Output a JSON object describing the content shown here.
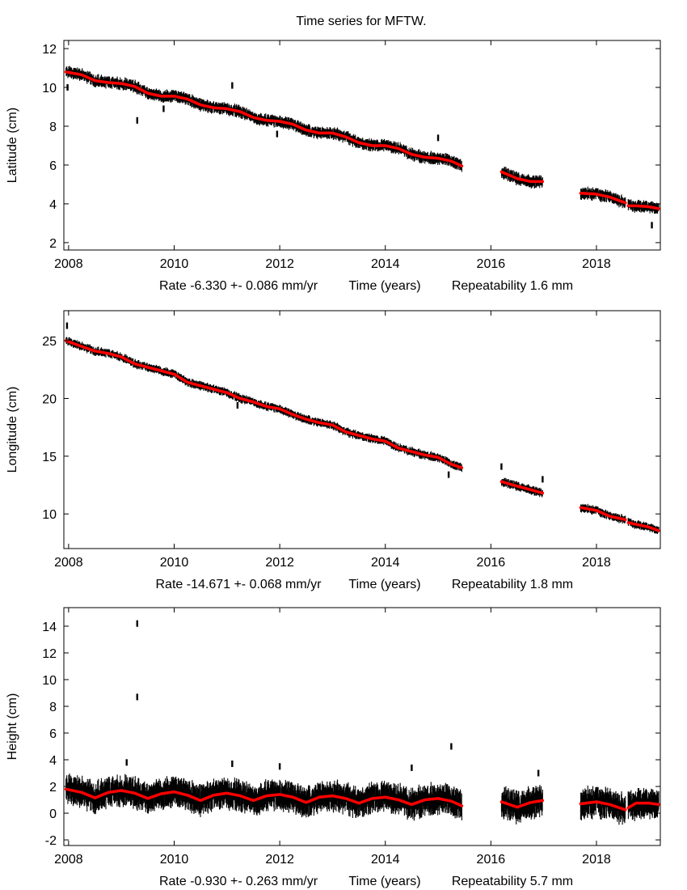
{
  "title": "Time series for MFTW.",
  "chart_data": [
    {
      "type": "scatter",
      "ylabel": "Latitude (cm)",
      "xlabel": "Time (years)",
      "rate_text": "Rate -6.330 +- 0.086 mm/yr",
      "repeatability_text": "Repeatability 1.6 mm",
      "xlim": [
        2007.91,
        2019.21
      ],
      "ylim": [
        1.62,
        12.42
      ],
      "xticks": [
        2008,
        2010,
        2012,
        2014,
        2016,
        2018
      ],
      "yticks": [
        2,
        4,
        6,
        8,
        10,
        12
      ],
      "grid": false,
      "observation_color": "#000000",
      "fit_color": "#ff0000",
      "scatter_halfwidth": 0.25,
      "fit_segments": [
        [
          [
            2007.95,
            10.8
          ],
          [
            2008.25,
            10.65
          ],
          [
            2008.5,
            10.35
          ],
          [
            2008.75,
            10.25
          ],
          [
            2009.0,
            10.2
          ],
          [
            2009.25,
            10.05
          ],
          [
            2009.5,
            9.7
          ],
          [
            2009.75,
            9.55
          ],
          [
            2010.0,
            9.55
          ],
          [
            2010.25,
            9.4
          ],
          [
            2010.5,
            9.1
          ],
          [
            2010.75,
            8.95
          ],
          [
            2011.0,
            8.9
          ],
          [
            2011.25,
            8.75
          ],
          [
            2011.5,
            8.45
          ],
          [
            2011.75,
            8.3
          ],
          [
            2012.0,
            8.25
          ],
          [
            2012.25,
            8.1
          ],
          [
            2012.5,
            7.8
          ],
          [
            2012.75,
            7.65
          ],
          [
            2013.0,
            7.65
          ],
          [
            2013.25,
            7.45
          ],
          [
            2013.5,
            7.15
          ],
          [
            2013.75,
            7.0
          ],
          [
            2014.0,
            7.0
          ],
          [
            2014.25,
            6.85
          ],
          [
            2014.5,
            6.55
          ],
          [
            2014.75,
            6.4
          ],
          [
            2015.0,
            6.35
          ],
          [
            2015.25,
            6.2
          ],
          [
            2015.45,
            5.95
          ]
        ],
        [
          [
            2016.2,
            5.65
          ],
          [
            2016.5,
            5.3
          ],
          [
            2016.75,
            5.15
          ],
          [
            2016.98,
            5.15
          ]
        ],
        [
          [
            2017.7,
            4.55
          ],
          [
            2018.0,
            4.5
          ],
          [
            2018.25,
            4.35
          ],
          [
            2018.55,
            4.05
          ]
        ],
        [
          [
            2018.6,
            3.9
          ],
          [
            2018.75,
            3.9
          ],
          [
            2019.0,
            3.85
          ],
          [
            2019.18,
            3.75
          ]
        ]
      ],
      "outliers": [
        [
          2007.98,
          10.0
        ],
        [
          2009.3,
          8.3
        ],
        [
          2009.8,
          8.9
        ],
        [
          2011.1,
          10.1
        ],
        [
          2011.95,
          7.6
        ],
        [
          2015.0,
          7.4
        ],
        [
          2019.05,
          2.9
        ]
      ]
    },
    {
      "type": "scatter",
      "ylabel": "Longitude (cm)",
      "xlabel": "Time (years)",
      "rate_text": "Rate -14.671 +- 0.068 mm/yr",
      "repeatability_text": "Repeatability 1.8 mm",
      "xlim": [
        2007.91,
        2019.21
      ],
      "ylim": [
        7.0,
        27.6
      ],
      "xticks": [
        2008,
        2010,
        2012,
        2014,
        2016,
        2018
      ],
      "yticks": [
        10,
        15,
        20,
        25
      ],
      "grid": false,
      "observation_color": "#000000",
      "fit_color": "#ff0000",
      "scatter_halfwidth": 0.3,
      "fit_segments": [
        [
          [
            2007.95,
            25.0
          ],
          [
            2008.25,
            24.5
          ],
          [
            2008.5,
            24.1
          ],
          [
            2008.75,
            23.9
          ],
          [
            2009.0,
            23.6
          ],
          [
            2009.25,
            23.0
          ],
          [
            2009.5,
            22.7
          ],
          [
            2009.75,
            22.4
          ],
          [
            2010.0,
            22.1
          ],
          [
            2010.25,
            21.4
          ],
          [
            2010.5,
            21.1
          ],
          [
            2010.75,
            20.8
          ],
          [
            2011.0,
            20.5
          ],
          [
            2011.25,
            20.0
          ],
          [
            2011.5,
            19.7
          ],
          [
            2011.75,
            19.3
          ],
          [
            2012.0,
            19.1
          ],
          [
            2012.25,
            18.6
          ],
          [
            2012.5,
            18.2
          ],
          [
            2012.75,
            17.9
          ],
          [
            2013.0,
            17.7
          ],
          [
            2013.25,
            17.1
          ],
          [
            2013.5,
            16.8
          ],
          [
            2013.75,
            16.5
          ],
          [
            2014.0,
            16.3
          ],
          [
            2014.25,
            15.7
          ],
          [
            2014.5,
            15.4
          ],
          [
            2014.75,
            15.1
          ],
          [
            2015.0,
            14.9
          ],
          [
            2015.25,
            14.3
          ],
          [
            2015.45,
            14.0
          ]
        ],
        [
          [
            2016.2,
            12.8
          ],
          [
            2016.5,
            12.4
          ],
          [
            2016.75,
            12.1
          ],
          [
            2016.98,
            11.8
          ]
        ],
        [
          [
            2017.7,
            10.55
          ],
          [
            2018.0,
            10.3
          ],
          [
            2018.25,
            9.8
          ],
          [
            2018.55,
            9.5
          ]
        ],
        [
          [
            2018.6,
            9.25
          ],
          [
            2018.75,
            9.1
          ],
          [
            2019.0,
            8.85
          ],
          [
            2019.18,
            8.55
          ]
        ]
      ],
      "outliers": [
        [
          2007.97,
          26.3
        ],
        [
          2015.2,
          13.4
        ],
        [
          2016.2,
          14.1
        ],
        [
          2016.98,
          13.0
        ],
        [
          2011.2,
          19.4
        ]
      ]
    },
    {
      "type": "scatter",
      "ylabel": "Height (cm)",
      "xlabel": "Time (years)",
      "rate_text": "Rate -0.930 +- 0.263 mm/yr",
      "repeatability_text": "Repeatability 5.7 mm",
      "xlim": [
        2007.91,
        2019.21
      ],
      "ylim": [
        -2.42,
        15.39
      ],
      "xticks": [
        2008,
        2010,
        2012,
        2014,
        2016,
        2018
      ],
      "yticks": [
        -2,
        0,
        2,
        4,
        6,
        8,
        10,
        12,
        14
      ],
      "grid": false,
      "observation_color": "#000000",
      "fit_color": "#ff0000",
      "scatter_halfwidth": 0.9,
      "fit_segments": [
        [
          [
            2007.95,
            1.8
          ],
          [
            2008.25,
            1.55
          ],
          [
            2008.5,
            1.15
          ],
          [
            2008.75,
            1.55
          ],
          [
            2009.0,
            1.7
          ],
          [
            2009.25,
            1.5
          ],
          [
            2009.5,
            1.1
          ],
          [
            2009.75,
            1.45
          ],
          [
            2010.0,
            1.6
          ],
          [
            2010.25,
            1.35
          ],
          [
            2010.5,
            0.95
          ],
          [
            2010.75,
            1.35
          ],
          [
            2011.0,
            1.5
          ],
          [
            2011.25,
            1.3
          ],
          [
            2011.5,
            0.95
          ],
          [
            2011.75,
            1.3
          ],
          [
            2012.0,
            1.4
          ],
          [
            2012.25,
            1.2
          ],
          [
            2012.5,
            0.8
          ],
          [
            2012.75,
            1.2
          ],
          [
            2013.0,
            1.3
          ],
          [
            2013.25,
            1.1
          ],
          [
            2013.5,
            0.75
          ],
          [
            2013.75,
            1.1
          ],
          [
            2014.0,
            1.2
          ],
          [
            2014.25,
            1.0
          ],
          [
            2014.5,
            0.65
          ],
          [
            2014.75,
            1.0
          ],
          [
            2015.0,
            1.1
          ],
          [
            2015.25,
            0.9
          ],
          [
            2015.45,
            0.55
          ]
        ],
        [
          [
            2016.2,
            0.85
          ],
          [
            2016.5,
            0.45
          ],
          [
            2016.75,
            0.8
          ],
          [
            2016.98,
            0.95
          ]
        ],
        [
          [
            2017.7,
            0.7
          ],
          [
            2018.0,
            0.85
          ],
          [
            2018.25,
            0.65
          ],
          [
            2018.55,
            0.25
          ]
        ],
        [
          [
            2018.6,
            0.4
          ],
          [
            2018.75,
            0.75
          ],
          [
            2019.0,
            0.75
          ],
          [
            2019.18,
            0.65
          ]
        ]
      ],
      "outliers": [
        [
          2009.3,
          14.2
        ],
        [
          2009.3,
          8.7
        ],
        [
          2015.25,
          5.0
        ],
        [
          2014.5,
          3.4
        ],
        [
          2009.1,
          3.8
        ],
        [
          2011.1,
          3.7
        ],
        [
          2012.0,
          3.5
        ],
        [
          2016.9,
          3.0
        ]
      ]
    }
  ]
}
